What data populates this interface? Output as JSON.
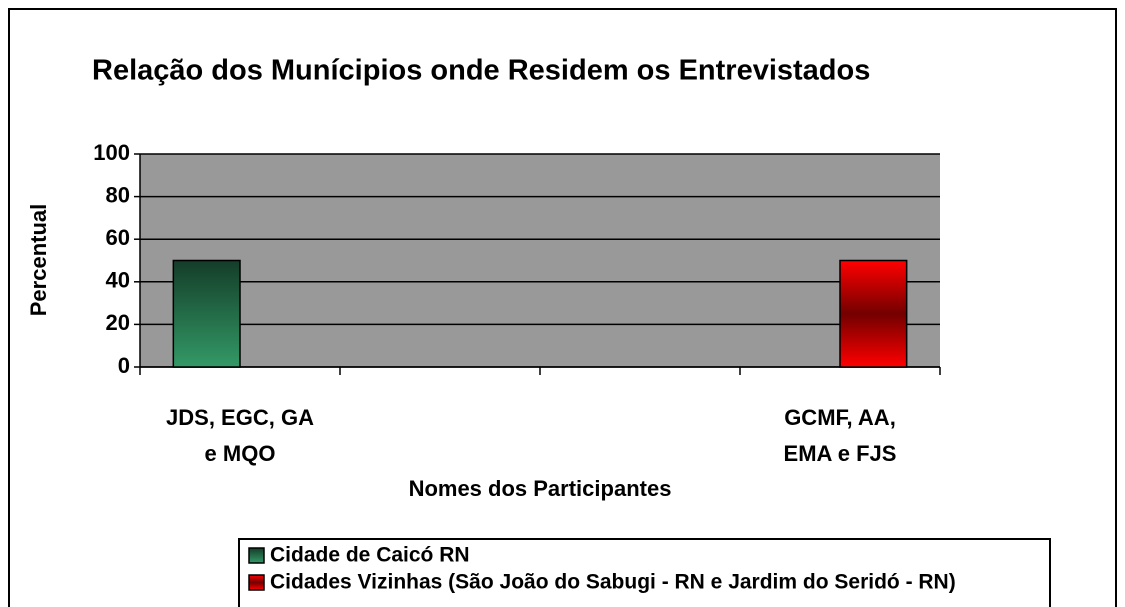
{
  "chart_data": {
    "type": "bar",
    "title": "Relação dos Munícipios onde Residem os Entrevistados",
    "x_label": "Nomes dos Participantes",
    "y_label": "Percentual",
    "categories": [
      "JDS, EGC, GA e MQO",
      null,
      null,
      "GCMF, AA, EMA e FJS"
    ],
    "series": [
      {
        "name": "Cidade de Caicó RN",
        "color": "#339966",
        "values": [
          50,
          null,
          null,
          null
        ]
      },
      {
        "name": "Cidades Vizinhas (São João do Sabugi - RN e Jardim do Seridó - RN)",
        "color": "#ff0000",
        "values": [
          null,
          null,
          null,
          50
        ]
      }
    ],
    "ylim": [
      0,
      100
    ],
    "yticks": [
      0,
      20,
      40,
      60,
      80,
      100
    ],
    "grid": true,
    "legend": "bottom"
  }
}
